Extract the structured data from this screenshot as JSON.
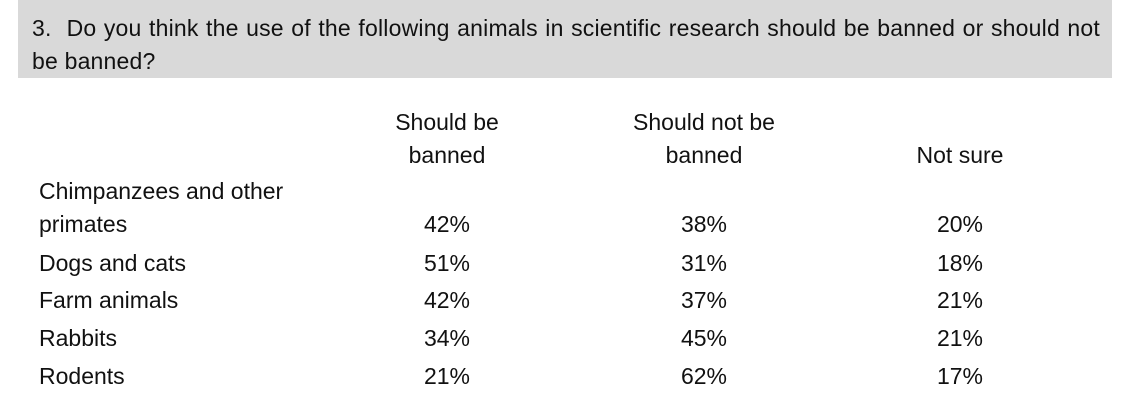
{
  "question": {
    "number": "3.",
    "text": "Do you think the use of the following animals in scientific research should be banned or should not be banned?"
  },
  "table": {
    "columns": [
      "Should be banned",
      "Should not be banned",
      "Not sure"
    ],
    "rows": [
      [
        "Chimpanzees and other primates",
        "42%",
        "38%",
        "20%"
      ],
      [
        "Dogs and cats",
        "51%",
        "31%",
        "18%"
      ],
      [
        "Farm animals",
        "42%",
        "37%",
        "21%"
      ],
      [
        "Rabbits",
        "34%",
        "45%",
        "21%"
      ],
      [
        "Rodents",
        "21%",
        "62%",
        "17%"
      ]
    ]
  }
}
